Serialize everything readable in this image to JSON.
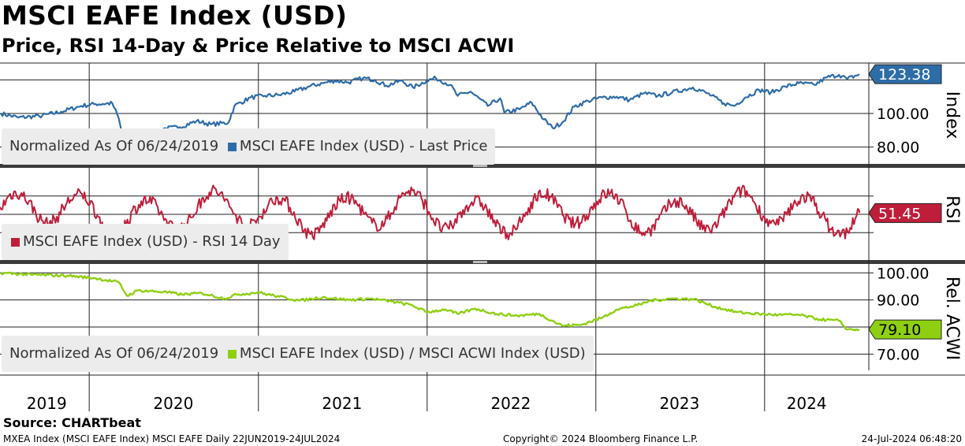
{
  "header": {
    "title": "MSCI EAFE Index (USD)",
    "subtitle": "Price, RSI 14-Day & Price Relative to MSCI ACWI"
  },
  "colors": {
    "price": "#2e6ca8",
    "rsi": "#bf1e3a",
    "relative": "#8fcf12"
  },
  "footer": {
    "source": "Source: CHARTbeat",
    "left": "MXEA Index (MSCI EAFE Index) MSCI EAFE  Daily 22JUN2019-24JUL2024",
    "center": "Copyright© 2024 Bloomberg Finance L.P.",
    "right": "24-Jul-2024 06:48:20"
  },
  "chart_data": [
    {
      "type": "line",
      "panel": "price",
      "axis_title": "Index",
      "legend_prefix": "Normalized As Of 06/24/2019",
      "series": [
        {
          "name": "MSCI EAFE Index (USD) - Last Price"
        }
      ],
      "last_value_label": "123.38",
      "y_ticks": [
        "100.00",
        "80.00"
      ],
      "ylim": [
        70,
        130
      ],
      "x": [
        "2019-06-24",
        "2019-08-01",
        "2019-09-15",
        "2019-11-01",
        "2019-12-15",
        "2020-01-15",
        "2020-02-20",
        "2020-03-05",
        "2020-03-23",
        "2020-04-15",
        "2020-05-15",
        "2020-06-10",
        "2020-07-15",
        "2020-08-20",
        "2020-09-20",
        "2020-10-28",
        "2020-11-10",
        "2020-12-15",
        "2021-01-15",
        "2021-02-15",
        "2021-03-20",
        "2021-04-20",
        "2021-05-20",
        "2021-06-15",
        "2021-07-15",
        "2021-08-15",
        "2021-09-10",
        "2021-10-05",
        "2021-11-05",
        "2021-12-01",
        "2021-12-31",
        "2022-01-20",
        "2022-02-20",
        "2022-03-08",
        "2022-04-05",
        "2022-05-12",
        "2022-06-08",
        "2022-06-17",
        "2022-07-20",
        "2022-08-15",
        "2022-09-10",
        "2022-09-29",
        "2022-10-20",
        "2022-11-15",
        "2022-12-15",
        "2023-01-15",
        "2023-02-15",
        "2023-03-15",
        "2023-04-15",
        "2023-05-15",
        "2023-06-15",
        "2023-07-30",
        "2023-08-30",
        "2023-10-05",
        "2023-10-27",
        "2023-11-20",
        "2023-12-20",
        "2024-01-15",
        "2024-02-15",
        "2024-03-15",
        "2024-04-18",
        "2024-05-15",
        "2024-06-10",
        "2024-06-28",
        "2024-07-24"
      ],
      "y": [
        100,
        97.6,
        98.4,
        101,
        104.5,
        105.6,
        106,
        97,
        72,
        81.5,
        85.5,
        91,
        91.9,
        95.5,
        93.5,
        94.5,
        104.5,
        109.5,
        110.5,
        111,
        113,
        116,
        118,
        119.5,
        118.5,
        121,
        120,
        116.5,
        119.5,
        115.5,
        119.5,
        121,
        117,
        110.5,
        113,
        104.5,
        109,
        100.5,
        102.5,
        106.5,
        96.5,
        91.5,
        94.5,
        104,
        107.5,
        109.5,
        110,
        108,
        112,
        110.5,
        112.5,
        115.5,
        112,
        106,
        104.5,
        109.5,
        114,
        112.5,
        116,
        118,
        117,
        121.5,
        123,
        120.5,
        123.38
      ]
    },
    {
      "type": "line",
      "panel": "rsi",
      "axis_title": "RSI",
      "series": [
        {
          "name": "MSCI EAFE Index (USD) - RSI 14 Day"
        }
      ],
      "last_value_label": "51.45",
      "ylim": [
        0,
        100
      ]
    },
    {
      "type": "line",
      "panel": "relative",
      "axis_title": "Rel. ACWI",
      "legend_prefix": "Normalized As Of 06/24/2019",
      "series": [
        {
          "name": "MSCI EAFE Index (USD) / MSCI ACWI Index (USD)"
        }
      ],
      "last_value_label": "79.10",
      "y_ticks": [
        "100.00",
        "90.00",
        "70.00"
      ],
      "ylim": [
        64,
        103
      ],
      "x": [
        "2019-06-24",
        "2019-09-01",
        "2019-11-15",
        "2020-01-15",
        "2020-03-05",
        "2020-03-23",
        "2020-04-15",
        "2020-06-10",
        "2020-07-20",
        "2020-09-01",
        "2020-10-20",
        "2020-11-15",
        "2020-12-31",
        "2021-02-15",
        "2021-04-01",
        "2021-05-20",
        "2021-07-15",
        "2021-08-31",
        "2021-10-15",
        "2021-11-30",
        "2021-12-31",
        "2022-02-10",
        "2022-03-08",
        "2022-04-15",
        "2022-06-01",
        "2022-07-15",
        "2022-09-01",
        "2022-10-20",
        "2022-11-30",
        "2023-01-15",
        "2023-02-15",
        "2023-03-31",
        "2023-05-01",
        "2023-06-15",
        "2023-08-01",
        "2023-09-15",
        "2023-11-01",
        "2023-12-20",
        "2024-01-31",
        "2024-03-15",
        "2024-04-30",
        "2024-06-10",
        "2024-06-28",
        "2024-07-24"
      ],
      "y": [
        100,
        99.3,
        99,
        98,
        96.5,
        91.5,
        93.5,
        93,
        92,
        92.5,
        90.5,
        92,
        92.8,
        91.2,
        89.8,
        91,
        90,
        90.5,
        89.5,
        88,
        85.5,
        86.5,
        84.8,
        86.8,
        84.8,
        84.2,
        84.8,
        80.5,
        80.8,
        83.5,
        86.5,
        88,
        89.8,
        90.5,
        90.3,
        87.5,
        85.5,
        84.8,
        84.5,
        84.5,
        82.8,
        82.3,
        79.1,
        79.1
      ]
    }
  ],
  "x_axis": {
    "labels": [
      "2019",
      "2020",
      "2021",
      "2022",
      "2023",
      "2024"
    ]
  }
}
